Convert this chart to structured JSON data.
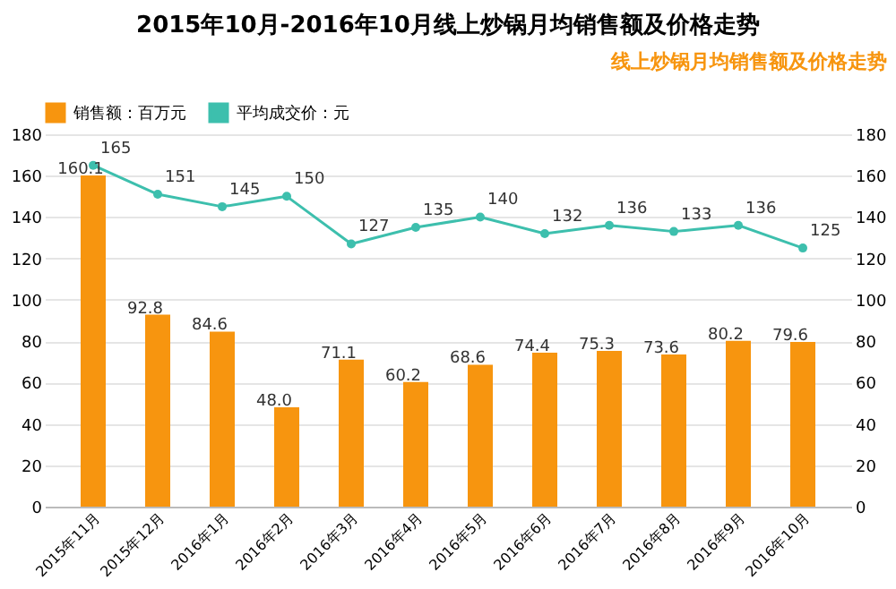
{
  "chart_data": {
    "type": "bar",
    "title": "2015年10月-2016年10月线上炒锅月均销售额及价格走势",
    "annotations": [
      "线上炒锅月均销售额及价格走势"
    ],
    "categories": [
      "2015年11月",
      "2015年12月",
      "2016年1月",
      "2016年2月",
      "2016年3月",
      "2016年4月",
      "2016年5月",
      "2016年6月",
      "2016年7月",
      "2016年8月",
      "2016年9月",
      "2016年10月"
    ],
    "series": [
      {
        "name": "销售额：百万元",
        "type": "bar",
        "color": "#f7950f",
        "values": [
          160.1,
          92.8,
          84.6,
          48.0,
          71.1,
          60.2,
          68.6,
          74.4,
          75.3,
          73.6,
          80.2,
          79.6
        ],
        "value_labels": [
          "160.1",
          "92.8",
          "84.6",
          "48.0",
          "71.1",
          "60.2",
          "68.6",
          "74.4",
          "75.3",
          "73.6",
          "80.2",
          "79.6"
        ]
      },
      {
        "name": "平均成交价：元",
        "type": "line",
        "axis": "y2",
        "color": "#3dbfad",
        "values": [
          165,
          151,
          145,
          150,
          127,
          135,
          140,
          132,
          136,
          133,
          136,
          125
        ]
      }
    ],
    "ylim": [
      0,
      180
    ],
    "yticks": [
      0,
      20,
      40,
      60,
      80,
      100,
      120,
      140,
      160,
      180
    ],
    "y2lim": [
      0,
      180
    ],
    "y2ticks": [
      0,
      20,
      40,
      60,
      80,
      100,
      120,
      140,
      160,
      180
    ],
    "grid": "y",
    "legend": "top left",
    "marker": "circle",
    "line_style": "solid",
    "data_labels": true
  }
}
